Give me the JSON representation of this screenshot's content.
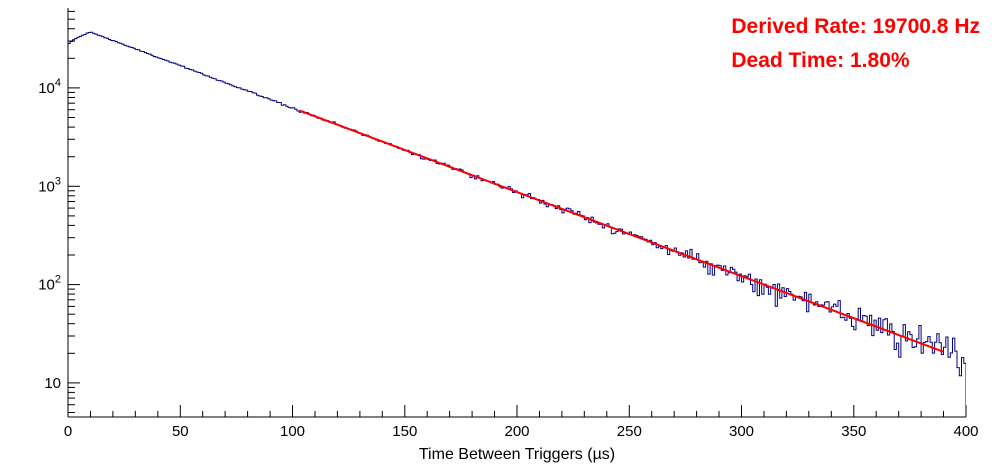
{
  "annotations": {
    "derived_rate": "Derived Rate: 19700.8 Hz",
    "dead_time": "Dead Time: 1.80%",
    "color": "#ff0000"
  },
  "chart_data": {
    "type": "histogram",
    "title": "",
    "xlabel": "Time Between Triggers (µs)",
    "ylabel": "",
    "x_range": [
      0,
      400
    ],
    "y_scale": "log",
    "y_range": [
      4.5,
      65000
    ],
    "grid": false,
    "x_major_ticks": [
      0,
      50,
      100,
      150,
      200,
      250,
      300,
      350,
      400
    ],
    "x_minor_step": 10,
    "y_major_ticks": [
      {
        "value": 10,
        "base": "10",
        "exp": ""
      },
      {
        "value": 100,
        "base": "10",
        "exp": "2"
      },
      {
        "value": 1000,
        "base": "10",
        "exp": "3"
      },
      {
        "value": 10000,
        "base": "10",
        "exp": "4"
      }
    ],
    "histogram": {
      "color": "#000080",
      "line_width": 1,
      "bins": 400,
      "bin_width_us": 1,
      "model": "A*exp(-x/tau)",
      "amplitude": 45000,
      "tau_us": 50.76,
      "rise_end_us": 10,
      "rise_start_frac": 0.62,
      "noise": "poisson",
      "noise_seed": 1234
    },
    "fit": {
      "color": "#ff0000",
      "line_width": 2,
      "model": "A*exp(-x/tau)",
      "amplitude": 45000,
      "tau_us": 50.76,
      "x_start": 103,
      "x_end": 390
    },
    "derived_rate_hz": 19700.8,
    "dead_time_pct": 1.8,
    "sample_points": [
      {
        "x": 10,
        "y": 36950
      },
      {
        "x": 25,
        "y": 27500
      },
      {
        "x": 50,
        "y": 16800
      },
      {
        "x": 75,
        "y": 10270
      },
      {
        "x": 100,
        "y": 6280
      },
      {
        "x": 125,
        "y": 3840
      },
      {
        "x": 150,
        "y": 2350
      },
      {
        "x": 175,
        "y": 1435
      },
      {
        "x": 200,
        "y": 877
      },
      {
        "x": 225,
        "y": 536
      },
      {
        "x": 250,
        "y": 328
      },
      {
        "x": 275,
        "y": 200
      },
      {
        "x": 300,
        "y": 123
      },
      {
        "x": 325,
        "y": 75
      },
      {
        "x": 350,
        "y": 46
      },
      {
        "x": 375,
        "y": 28
      },
      {
        "x": 400,
        "y": 17
      }
    ]
  }
}
